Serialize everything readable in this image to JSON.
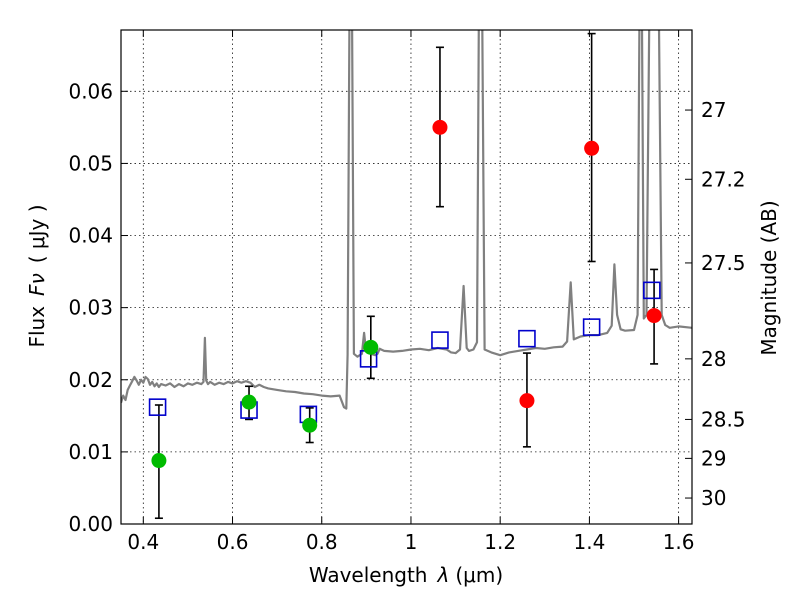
{
  "chart_data": {
    "type": "scatter",
    "xlabel_text": "Wavelength",
    "xlabel_symbol": "λ",
    "xlabel_unit": "(μm)",
    "ylabel_text": "Flux",
    "ylabel_symbol": "Fν",
    "ylabel_unit": "( μJy )",
    "y2label": "Magnitude (AB)",
    "xlim": [
      0.35,
      1.63
    ],
    "ylim": [
      0.0,
      0.0685
    ],
    "x_ticks": [
      0.4,
      0.6,
      0.8,
      1.0,
      1.2,
      1.4,
      1.6
    ],
    "x_tick_labels": [
      "0.4",
      "0.6",
      "0.8",
      "1",
      "1.2",
      "1.4",
      "1.6"
    ],
    "y_ticks": [
      0.0,
      0.01,
      0.02,
      0.03,
      0.04,
      0.05,
      0.06
    ],
    "y_tick_labels": [
      "0.00",
      "0.01",
      "0.02",
      "0.03",
      "0.04",
      "0.05",
      "0.06"
    ],
    "y2_ticks": [
      {
        "flux": 0.0574,
        "label": "27"
      },
      {
        "flux": 0.0478,
        "label": "27.2"
      },
      {
        "flux": 0.0362,
        "label": "27.5"
      },
      {
        "flux": 0.0229,
        "label": "28"
      },
      {
        "flux": 0.0145,
        "label": "28.5"
      },
      {
        "flux": 0.0091,
        "label": "29"
      },
      {
        "flux": 0.0036,
        "label": "30"
      }
    ],
    "grid": true,
    "colors": {
      "spectrum": "#808080",
      "model": "#0000cc",
      "detected": "#00bb00",
      "observed_red": "#ff0000",
      "errorbar": "#000000"
    },
    "spectrum": [
      [
        0.35,
        0.0168
      ],
      [
        0.355,
        0.0178
      ],
      [
        0.36,
        0.0172
      ],
      [
        0.365,
        0.0186
      ],
      [
        0.37,
        0.0192
      ],
      [
        0.375,
        0.0198
      ],
      [
        0.38,
        0.0204
      ],
      [
        0.385,
        0.0199
      ],
      [
        0.39,
        0.0193
      ],
      [
        0.395,
        0.02
      ],
      [
        0.4,
        0.0196
      ],
      [
        0.405,
        0.0204
      ],
      [
        0.41,
        0.0201
      ],
      [
        0.415,
        0.0193
      ],
      [
        0.42,
        0.0197
      ],
      [
        0.425,
        0.0191
      ],
      [
        0.43,
        0.0195
      ],
      [
        0.435,
        0.019
      ],
      [
        0.44,
        0.0194
      ],
      [
        0.45,
        0.0192
      ],
      [
        0.46,
        0.0195
      ],
      [
        0.47,
        0.019
      ],
      [
        0.48,
        0.0194
      ],
      [
        0.49,
        0.0191
      ],
      [
        0.5,
        0.0195
      ],
      [
        0.51,
        0.0193
      ],
      [
        0.52,
        0.0196
      ],
      [
        0.53,
        0.0194
      ],
      [
        0.535,
        0.0197
      ],
      [
        0.538,
        0.0258
      ],
      [
        0.541,
        0.0199
      ],
      [
        0.545,
        0.0194
      ],
      [
        0.55,
        0.0197
      ],
      [
        0.56,
        0.0193
      ],
      [
        0.57,
        0.0196
      ],
      [
        0.58,
        0.0194
      ],
      [
        0.59,
        0.0197
      ],
      [
        0.6,
        0.0195
      ],
      [
        0.61,
        0.0198
      ],
      [
        0.62,
        0.0196
      ],
      [
        0.63,
        0.0198
      ],
      [
        0.64,
        0.0196
      ],
      [
        0.65,
        0.019
      ],
      [
        0.66,
        0.0193
      ],
      [
        0.67,
        0.019
      ],
      [
        0.68,
        0.0188
      ],
      [
        0.7,
        0.0186
      ],
      [
        0.72,
        0.0184
      ],
      [
        0.74,
        0.0183
      ],
      [
        0.76,
        0.0181
      ],
      [
        0.78,
        0.018
      ],
      [
        0.8,
        0.0178
      ],
      [
        0.82,
        0.0177
      ],
      [
        0.84,
        0.0178
      ],
      [
        0.85,
        0.0162
      ],
      [
        0.855,
        0.016
      ],
      [
        0.858,
        0.0235
      ],
      [
        0.862,
        0.069
      ],
      [
        0.868,
        0.069
      ],
      [
        0.872,
        0.0236
      ],
      [
        0.88,
        0.0232
      ],
      [
        0.89,
        0.0236
      ],
      [
        0.895,
        0.0265
      ],
      [
        0.899,
        0.0242
      ],
      [
        0.905,
        0.0238
      ],
      [
        0.91,
        0.0236
      ],
      [
        0.92,
        0.0234
      ],
      [
        0.925,
        0.0236
      ],
      [
        0.93,
        0.0243
      ],
      [
        0.94,
        0.024
      ],
      [
        0.96,
        0.0239
      ],
      [
        0.98,
        0.024
      ],
      [
        1.0,
        0.0242
      ],
      [
        1.02,
        0.0243
      ],
      [
        1.04,
        0.0241
      ],
      [
        1.06,
        0.0244
      ],
      [
        1.08,
        0.0242
      ],
      [
        1.09,
        0.0238
      ],
      [
        1.1,
        0.0237
      ],
      [
        1.11,
        0.0242
      ],
      [
        1.118,
        0.033
      ],
      [
        1.125,
        0.0244
      ],
      [
        1.13,
        0.024
      ],
      [
        1.14,
        0.0242
      ],
      [
        1.148,
        0.0252
      ],
      [
        1.152,
        0.069
      ],
      [
        1.16,
        0.069
      ],
      [
        1.165,
        0.0242
      ],
      [
        1.18,
        0.0238
      ],
      [
        1.2,
        0.0234
      ],
      [
        1.22,
        0.0238
      ],
      [
        1.24,
        0.024
      ],
      [
        1.26,
        0.0242
      ],
      [
        1.28,
        0.0244
      ],
      [
        1.3,
        0.0243
      ],
      [
        1.32,
        0.0245
      ],
      [
        1.34,
        0.0246
      ],
      [
        1.35,
        0.0253
      ],
      [
        1.358,
        0.0335
      ],
      [
        1.365,
        0.0256
      ],
      [
        1.38,
        0.026
      ],
      [
        1.4,
        0.0262
      ],
      [
        1.42,
        0.0262
      ],
      [
        1.44,
        0.0265
      ],
      [
        1.45,
        0.0275
      ],
      [
        1.456,
        0.036
      ],
      [
        1.462,
        0.029
      ],
      [
        1.47,
        0.027
      ],
      [
        1.48,
        0.0268
      ],
      [
        1.5,
        0.0269
      ],
      [
        1.508,
        0.029
      ],
      [
        1.512,
        0.069
      ],
      [
        1.518,
        0.069
      ],
      [
        1.522,
        0.0285
      ],
      [
        1.528,
        0.029
      ],
      [
        1.534,
        0.069
      ],
      [
        1.546,
        0.069
      ],
      [
        1.55,
        0.069
      ],
      [
        1.556,
        0.069
      ],
      [
        1.562,
        0.029
      ],
      [
        1.57,
        0.0276
      ],
      [
        1.58,
        0.0272
      ],
      [
        1.6,
        0.0274
      ],
      [
        1.63,
        0.0272
      ]
    ],
    "model_points": [
      {
        "x": 0.432,
        "y": 0.0162
      },
      {
        "x": 0.637,
        "y": 0.0158
      },
      {
        "x": 0.77,
        "y": 0.0152
      },
      {
        "x": 0.905,
        "y": 0.0229
      },
      {
        "x": 1.065,
        "y": 0.0255
      },
      {
        "x": 1.26,
        "y": 0.0257
      },
      {
        "x": 1.405,
        "y": 0.0273
      },
      {
        "x": 1.54,
        "y": 0.0324
      }
    ],
    "observed_points": [
      {
        "x": 0.435,
        "y": 0.0088,
        "lo": 0.0008,
        "hi": 0.0165,
        "color": "detected"
      },
      {
        "x": 0.637,
        "y": 0.0169,
        "lo": 0.0145,
        "hi": 0.0191,
        "color": "detected"
      },
      {
        "x": 0.773,
        "y": 0.0137,
        "lo": 0.0113,
        "hi": 0.0161,
        "color": "detected"
      },
      {
        "x": 0.91,
        "y": 0.0245,
        "lo": 0.0202,
        "hi": 0.0288,
        "color": "detected"
      },
      {
        "x": 1.065,
        "y": 0.055,
        "lo": 0.044,
        "hi": 0.0661,
        "color": "observed_red"
      },
      {
        "x": 1.26,
        "y": 0.0171,
        "lo": 0.0107,
        "hi": 0.0237,
        "color": "observed_red"
      },
      {
        "x": 1.405,
        "y": 0.0521,
        "lo": 0.0364,
        "hi": 0.068,
        "color": "observed_red"
      },
      {
        "x": 1.545,
        "y": 0.0289,
        "lo": 0.0222,
        "hi": 0.0353,
        "color": "observed_red"
      }
    ]
  }
}
